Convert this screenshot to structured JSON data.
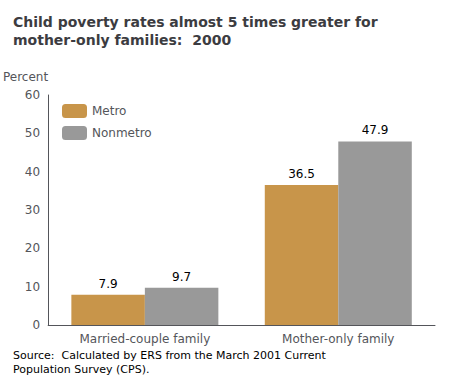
{
  "chart_data": {
    "type": "bar",
    "title": "Child poverty rates almost 5 times greater for\nmother-only families:  2000",
    "ylabel": "Percent",
    "categories": [
      "Married-couple family",
      "Mother-only family"
    ],
    "series": [
      {
        "name": "Metro",
        "color": "#C8954A",
        "values": [
          7.9,
          36.5
        ]
      },
      {
        "name": "Nonmetro",
        "color": "#999999",
        "values": [
          9.7,
          47.9
        ]
      }
    ],
    "ylim": [
      0,
      60
    ],
    "yticks": [
      0,
      10,
      20,
      30,
      40,
      50,
      60
    ],
    "grid": false,
    "legend": "upper left",
    "data_labels": true,
    "source": "Source:  Calculated by ERS from the March 2001 Current\nPopulation Survey (CPS)."
  }
}
